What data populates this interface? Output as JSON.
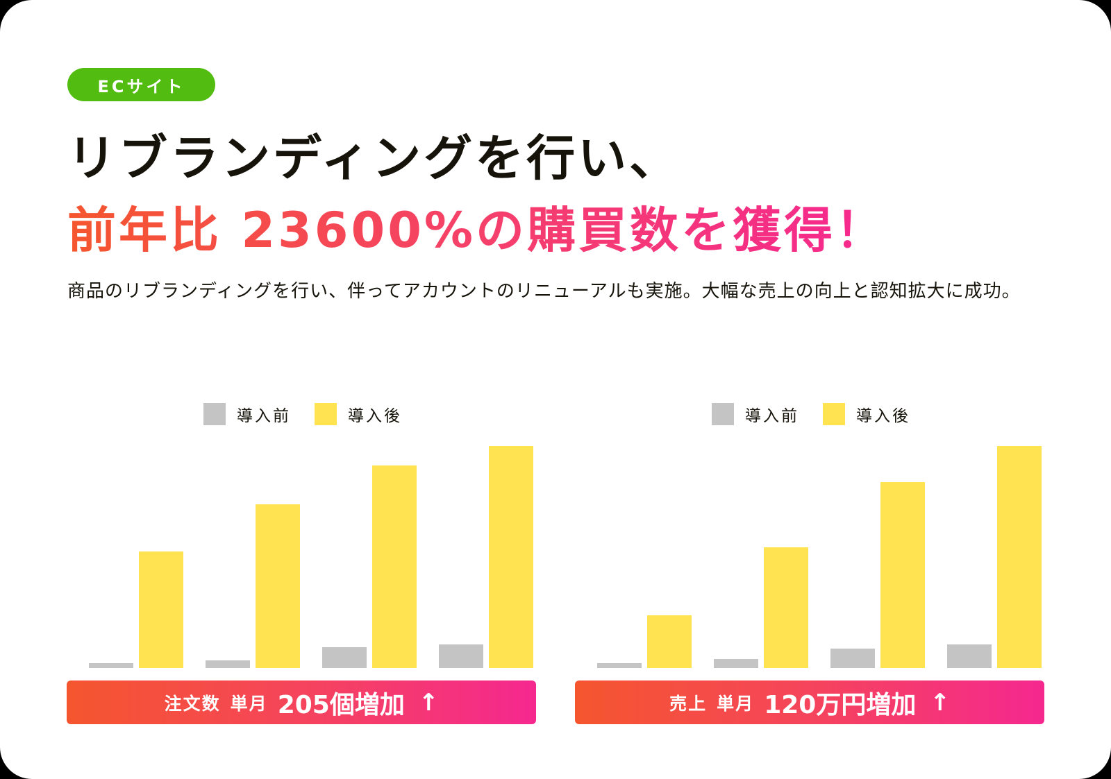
{
  "badge": {
    "label": "ECサイト",
    "color": "#52bc10"
  },
  "headline": {
    "line1": "リブランディングを行い、",
    "line2": "前年比 23600%の購買数を獲得！",
    "gradient": [
      "#f5562e",
      "#f5288f"
    ]
  },
  "description": "商品のリブランディングを行い、伴ってアカウントのリニューアルも実施。大幅な売上の向上と認知拡大に成功。",
  "legend": {
    "before": "導入前",
    "after": "導入後",
    "before_color": "#c4c4c4",
    "after_color": "#ffe351"
  },
  "banners": [
    {
      "label": "注文数",
      "period": "単月",
      "value": "205個増加",
      "arrow": "↑"
    },
    {
      "label": "売上",
      "period": "単月",
      "value": "120万円増加",
      "arrow": "↑"
    }
  ],
  "chart_data": [
    {
      "type": "bar",
      "title": "注文数 単月 205個増加 ↑",
      "categories": [
        "1",
        "2",
        "3",
        "4"
      ],
      "series": [
        {
          "name": "導入前",
          "values": [
            7,
            11,
            29,
            33
          ]
        },
        {
          "name": "導入後",
          "values": [
            164,
            231,
            286,
            313
          ]
        }
      ],
      "xlabel": "",
      "ylabel": "",
      "ylim": [
        0,
        313
      ],
      "grid": false,
      "legend_position": "top",
      "axis_labels_visible": false
    },
    {
      "type": "bar",
      "title": "売上 単月 120万円増加 ↑",
      "categories": [
        "1",
        "2",
        "3",
        "4"
      ],
      "series": [
        {
          "name": "導入前",
          "values": [
            7,
            13,
            27,
            33
          ]
        },
        {
          "name": "導入後",
          "values": [
            74,
            170,
            262,
            313
          ]
        }
      ],
      "xlabel": "",
      "ylabel": "",
      "ylim": [
        0,
        313
      ],
      "grid": false,
      "legend_position": "top",
      "axis_labels_visible": false
    }
  ]
}
